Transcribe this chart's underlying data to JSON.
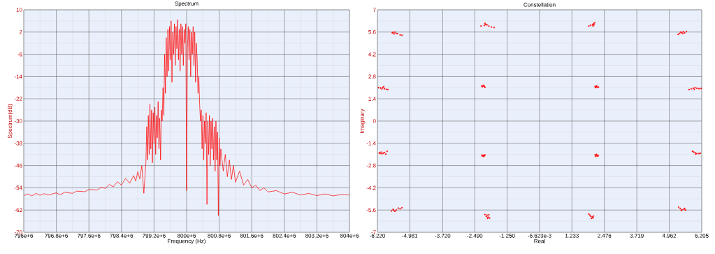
{
  "chart_data": [
    {
      "type": "line",
      "title": "Spectrum",
      "xlabel": "Frequency (Hz)",
      "ylabel": "Spectrum(dB)",
      "color": "#ff0000",
      "grid": true,
      "xlim": [
        796000000.0,
        804000000.0
      ],
      "ylim": [
        -70,
        10
      ],
      "xticks": [
        {
          "value": 796000000.0,
          "label": "796e+6"
        },
        {
          "value": 796800000.0,
          "label": "796.8e+6"
        },
        {
          "value": 797600000.0,
          "label": "797.6e+6"
        },
        {
          "value": 798400000.0,
          "label": "798.4e+6"
        },
        {
          "value": 799200000.0,
          "label": "799.2e+6"
        },
        {
          "value": 800000000.0,
          "label": "800e+6"
        },
        {
          "value": 800800000.0,
          "label": "800.8e+6"
        },
        {
          "value": 801600000.0,
          "label": "801.6e+6"
        },
        {
          "value": 802400000.0,
          "label": "802.4e+6"
        },
        {
          "value": 803200000.0,
          "label": "803.2e+6"
        },
        {
          "value": 804000000.0,
          "label": "804e+6"
        }
      ],
      "yticks": [
        -70,
        -62,
        -54,
        -46,
        -38,
        -30,
        -22,
        -14,
        -6,
        2,
        10
      ],
      "x": [
        796000000.0,
        796100000.0,
        796200000.0,
        796300000.0,
        796400000.0,
        796500000.0,
        796600000.0,
        796800000.0,
        796900000.0,
        797000000.0,
        797200000.0,
        797300000.0,
        797500000.0,
        797600000.0,
        797800000.0,
        797900000.0,
        798000000.0,
        798100000.0,
        798200000.0,
        798300000.0,
        798400000.0,
        798500000.0,
        798600000.0,
        798700000.0,
        798750000.0,
        798800000.0,
        798850000.0,
        798900000.0,
        798950000.0,
        799000000.0,
        799020000.0,
        799040000.0,
        799060000.0,
        799080000.0,
        799100000.0,
        799120000.0,
        799140000.0,
        799160000.0,
        799180000.0,
        799200000.0,
        799220000.0,
        799240000.0,
        799260000.0,
        799280000.0,
        799300000.0,
        799320000.0,
        799340000.0,
        799360000.0,
        799380000.0,
        799400000.0,
        799420000.0,
        799440000.0,
        799460000.0,
        799480000.0,
        799500000.0,
        799520000.0,
        799540000.0,
        799560000.0,
        799580000.0,
        799600000.0,
        799620000.0,
        799640000.0,
        799660000.0,
        799680000.0,
        799700000.0,
        799720000.0,
        799740000.0,
        799760000.0,
        799780000.0,
        799800000.0,
        799820000.0,
        799840000.0,
        799860000.0,
        799880000.0,
        799900000.0,
        799920000.0,
        799940000.0,
        799960000.0,
        799980000.0,
        800000000.0,
        800020000.0,
        800040000.0,
        800060000.0,
        800080000.0,
        800100000.0,
        800120000.0,
        800140000.0,
        800160000.0,
        800180000.0,
        800200000.0,
        800220000.0,
        800240000.0,
        800260000.0,
        800280000.0,
        800300000.0,
        800320000.0,
        800340000.0,
        800360000.0,
        800380000.0,
        800400000.0,
        800420000.0,
        800440000.0,
        800460000.0,
        800480000.0,
        800500000.0,
        800520000.0,
        800540000.0,
        800560000.0,
        800580000.0,
        800600000.0,
        800620000.0,
        800640000.0,
        800660000.0,
        800680000.0,
        800700000.0,
        800720000.0,
        800740000.0,
        800760000.0,
        800780000.0,
        800800000.0,
        800820000.0,
        800840000.0,
        800900000.0,
        800950000.0,
        801000000.0,
        801050000.0,
        801100000.0,
        801150000.0,
        801200000.0,
        801300000.0,
        801400000.0,
        801500000.0,
        801600000.0,
        801700000.0,
        801800000.0,
        801900000.0,
        802000000.0,
        802200000.0,
        802400000.0,
        802600000.0,
        802800000.0,
        803000000.0,
        803200000.0,
        803400000.0,
        803600000.0,
        803800000.0,
        804000000.0
      ],
      "values": [
        -56.8,
        -56.2,
        -56.9,
        -56.0,
        -56.7,
        -56.1,
        -56.6,
        -55.8,
        -56.5,
        -55.6,
        -56.0,
        -55.2,
        -55.4,
        -54.6,
        -54.8,
        -53.8,
        -54.2,
        -52.8,
        -53.6,
        -51.8,
        -53.0,
        -50.6,
        -52.4,
        -49.6,
        -51.6,
        -48.2,
        -50.8,
        -46.0,
        -56.0,
        -45.0,
        -32.0,
        -44.0,
        -28.0,
        -42.0,
        -24.0,
        -40.0,
        -26.0,
        -45.0,
        -27.0,
        -38.0,
        -25.0,
        -42.0,
        -28.0,
        -36.0,
        -23.0,
        -40.0,
        -29.0,
        -44.0,
        -26.0,
        -30.0,
        -18.0,
        -28.0,
        -6.0,
        -20.0,
        0.0,
        -14.0,
        3.0,
        -12.0,
        4.0,
        -8.0,
        6.0,
        -16.0,
        2.0,
        -6.0,
        5.0,
        -10.0,
        4.0,
        -4.0,
        6.5,
        -8.0,
        3.0,
        -12.0,
        5.0,
        -6.0,
        4.0,
        -10.0,
        3.0,
        -2.0,
        5.0,
        -55.0,
        -4.0,
        4.0,
        -8.0,
        3.0,
        -14.0,
        2.0,
        -6.0,
        4.0,
        -10.0,
        2.0,
        -16.0,
        -2.0,
        -8.0,
        -20.0,
        -14.0,
        -24.0,
        -30.0,
        -26.0,
        -40.0,
        -28.0,
        -44.0,
        -30.0,
        -38.0,
        -27.0,
        -60.0,
        -30.0,
        -42.0,
        -28.0,
        -46.0,
        -30.0,
        -40.0,
        -29.0,
        -44.0,
        -32.0,
        -48.0,
        -30.0,
        -44.0,
        -34.0,
        -64.0,
        -36.0,
        -46.0,
        -40.0,
        -48.0,
        -42.0,
        -50.0,
        -44.0,
        -51.0,
        -46.0,
        -52.0,
        -48.0,
        -53.0,
        -51.0,
        -54.0,
        -53.0,
        -55.0,
        -54.0,
        -55.5,
        -55.0,
        -56.2,
        -55.6,
        -56.6,
        -56.0,
        -56.8,
        -56.2,
        -56.9,
        -56.4,
        -56.6
      ]
    },
    {
      "type": "scatter",
      "title": "Constellation",
      "xlabel": "Real",
      "ylabel": "Imaginary",
      "color": "#ff0000",
      "marker": "circle",
      "grid": true,
      "xlim": [
        -6.22,
        6.205
      ],
      "ylim": [
        -7,
        7
      ],
      "xticks": [
        {
          "value": -6.22,
          "label": "-6.220"
        },
        {
          "value": -4.981,
          "label": "-4.981"
        },
        {
          "value": -3.72,
          "label": "-3.720"
        },
        {
          "value": -2.49,
          "label": "-2.490"
        },
        {
          "value": -1.25,
          "label": "-1.250"
        },
        {
          "value": -0.006623,
          "label": "-6.623e-3"
        },
        {
          "value": 1.233,
          "label": "1.233"
        },
        {
          "value": 2.476,
          "label": "2.476"
        },
        {
          "value": 3.719,
          "label": "3.719"
        },
        {
          "value": 4.962,
          "label": "4.962"
        },
        {
          "value": 6.205,
          "label": "6.205"
        }
      ],
      "yticks": [
        -7,
        -5.6,
        -4.2,
        -2.8,
        -1.4,
        0,
        1.4,
        2.8,
        4.2,
        5.6,
        7
      ],
      "x": [
        -5.62,
        -5.55,
        -5.5,
        -5.58,
        -5.45,
        -5.35,
        -5.28,
        -5.65,
        -2.1,
        -2.07,
        -2.02,
        -2.12,
        -1.95,
        -1.85,
        -1.75,
        -2.25,
        -6.18,
        -6.1,
        -6.02,
        -5.95,
        -6.05,
        -5.88,
        -5.82,
        -5.98,
        -2.22,
        -2.17,
        -2.12,
        -2.2,
        -2.1,
        -2.15,
        -6.15,
        -6.08,
        -6.0,
        -5.95,
        -6.05,
        -5.9,
        -5.85,
        -6.12,
        -2.22,
        -2.17,
        -2.12,
        -2.2,
        -2.1,
        -2.15,
        -5.68,
        -5.6,
        -5.55,
        -5.5,
        -5.42,
        -5.35,
        -5.28,
        -5.62,
        -2.1,
        -2.02,
        -1.95,
        -2.05,
        -1.98,
        -2.0,
        -1.92,
        1.88,
        1.95,
        2.02,
        2.06,
        2.08,
        2.04,
        2.1,
        5.3,
        5.36,
        5.44,
        5.5,
        5.55,
        5.62,
        5.48,
        5.4,
        2.12,
        2.16,
        2.2,
        2.14,
        2.25,
        2.18,
        5.72,
        5.8,
        5.88,
        5.95,
        6.02,
        6.1,
        5.92,
        6.18,
        2.12,
        2.16,
        2.2,
        2.14,
        2.24,
        2.18,
        5.85,
        5.9,
        5.96,
        6.02,
        6.1,
        6.15,
        5.98,
        1.88,
        1.92,
        1.96,
        2.02,
        2.06,
        1.98,
        2.04,
        5.32,
        5.38,
        5.45,
        5.52,
        5.58,
        5.55,
        5.42
      ],
      "values": [
        5.58,
        5.6,
        5.52,
        5.48,
        5.5,
        5.42,
        5.4,
        5.55,
        6.15,
        6.08,
        6.05,
        6.02,
        5.98,
        5.92,
        5.88,
        5.98,
        2.1,
        2.08,
        2.1,
        2.04,
        2.02,
        2.0,
        1.98,
        2.16,
        2.2,
        2.22,
        2.18,
        2.16,
        2.12,
        2.25,
        -2.0,
        -1.96,
        -2.02,
        -1.98,
        -2.06,
        -2.08,
        -1.9,
        -2.04,
        -2.14,
        -2.16,
        -2.18,
        -2.2,
        -2.13,
        -2.22,
        -5.66,
        -5.62,
        -5.68,
        -5.6,
        -5.48,
        -5.52,
        -5.45,
        -5.55,
        -5.88,
        -5.92,
        -5.9,
        -6.0,
        -6.05,
        -6.12,
        -6.1,
        5.98,
        6.02,
        6.06,
        6.12,
        6.05,
        5.98,
        6.18,
        5.45,
        5.52,
        5.56,
        5.62,
        5.55,
        5.64,
        5.5,
        5.6,
        2.18,
        2.16,
        2.12,
        2.1,
        2.14,
        2.2,
        1.98,
        2.02,
        2.06,
        2.1,
        2.06,
        2.04,
        2.0,
        2.05,
        -2.12,
        -2.16,
        -2.2,
        -2.22,
        -2.18,
        -2.1,
        -1.9,
        -1.95,
        -2.0,
        -2.04,
        -2.05,
        -2.02,
        -2.08,
        -5.85,
        -5.92,
        -6.0,
        -6.04,
        -5.98,
        -6.12,
        -6.1,
        -5.42,
        -5.5,
        -5.58,
        -5.55,
        -5.6,
        -5.5,
        -5.62
      ]
    }
  ]
}
